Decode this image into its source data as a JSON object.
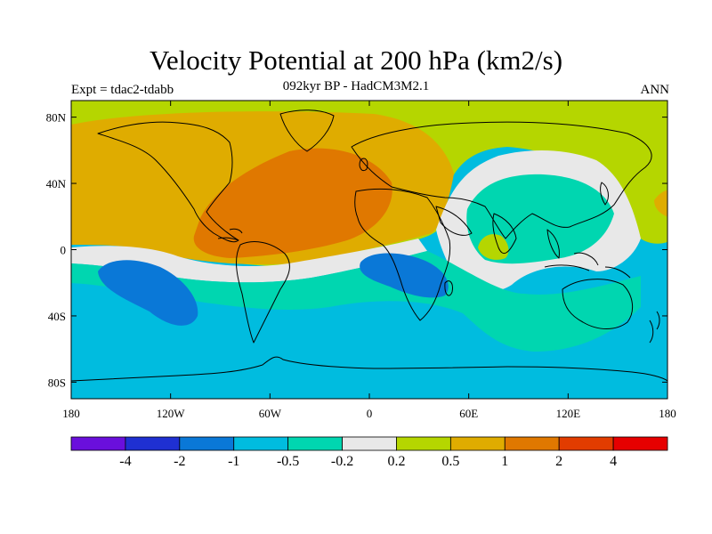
{
  "title": "Velocity Potential at 200 hPa (km2/s)",
  "subtitle": "092kyr BP - HadCM3M2.1",
  "left_label": "Expt = tdac2-tdabb",
  "right_label": "ANN",
  "axes": {
    "lon_range": [
      -180,
      180
    ],
    "lat_range": [
      -90,
      90
    ],
    "x_ticks": [
      {
        "lon": -180,
        "label": "180"
      },
      {
        "lon": -120,
        "label": "120W"
      },
      {
        "lon": -60,
        "label": "60W"
      },
      {
        "lon": 0,
        "label": "0"
      },
      {
        "lon": 60,
        "label": "60E"
      },
      {
        "lon": 120,
        "label": "120E"
      },
      {
        "lon": 180,
        "label": "180"
      }
    ],
    "y_ticks": [
      {
        "lat": 80,
        "label": "80N"
      },
      {
        "lat": 40,
        "label": "40N"
      },
      {
        "lat": 0,
        "label": "0"
      },
      {
        "lat": -40,
        "label": "40S"
      },
      {
        "lat": -80,
        "label": "80S"
      }
    ]
  },
  "colorbar": {
    "colors": [
      "#6a0fdc",
      "#1f30d2",
      "#0a78d7",
      "#00bcdf",
      "#00d6b0",
      "#e8e8e8",
      "#b5d600",
      "#dfac00",
      "#e07800",
      "#e23c00",
      "#e60000"
    ],
    "labels": [
      "-4",
      "-2",
      "-1",
      "-0.5",
      "-0.2",
      "0.2",
      "0.5",
      "1",
      "2",
      "4"
    ]
  },
  "field_colors": {
    "yellowgreen": "#b5d600",
    "gold": "#dfac00",
    "orange": "#e07800",
    "gray": "#e8e8e8",
    "teal": "#00d6b0",
    "cyan": "#00bcdf",
    "blue": "#0a78d7"
  }
}
